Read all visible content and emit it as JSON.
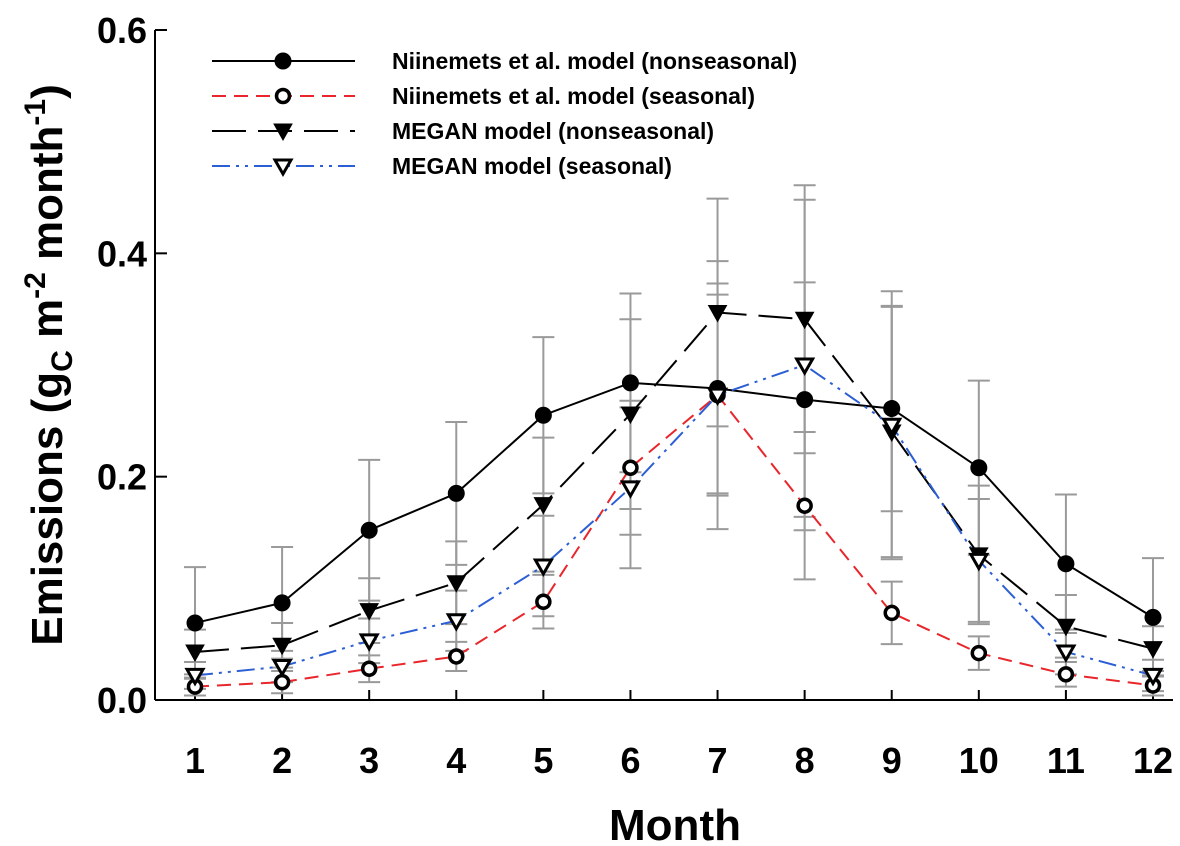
{
  "chart_data": {
    "type": "line",
    "title": "",
    "xlabel": "Month",
    "ylabel": {
      "main": "Emissions (g",
      "sub": "C",
      "mid": " m",
      "sup1": "-2",
      "mid2": " month",
      "sup2": "-1",
      "end": ")"
    },
    "ylim": [
      0,
      0.6
    ],
    "yticks": [
      "0.0",
      "0.2",
      "0.4",
      "0.6"
    ],
    "ytick_values": [
      0,
      0.2,
      0.4,
      0.6
    ],
    "x": [
      1,
      2,
      3,
      4,
      5,
      6,
      7,
      8,
      9,
      10,
      11,
      12
    ],
    "xticks": [
      "1",
      "2",
      "3",
      "4",
      "5",
      "6",
      "7",
      "8",
      "9",
      "10",
      "11",
      "12"
    ],
    "grid": false,
    "legend_position": "top-left",
    "series": [
      {
        "name": "Niinemets et al. model (nonseasonal)",
        "color": "#000000",
        "dash": "solid",
        "marker": "filled-circle",
        "values": [
          0.069,
          0.087,
          0.152,
          0.185,
          0.255,
          0.284,
          0.279,
          0.269,
          0.261,
          0.208,
          0.122,
          0.074
        ],
        "error": [
          0.05,
          0.05,
          0.063,
          0.064,
          0.07,
          0.08,
          0.094,
          0.105,
          0.092,
          0.078,
          0.062,
          0.053
        ]
      },
      {
        "name": "Niinemets et al. model (seasonal)",
        "color": "#e8262b",
        "dash": "dashed",
        "marker": "open-circle",
        "values": [
          0.012,
          0.016,
          0.028,
          0.039,
          0.088,
          0.208,
          0.273,
          0.174,
          0.078,
          0.042,
          0.023,
          0.013
        ],
        "error": [
          0.008,
          0.01,
          0.012,
          0.013,
          0.024,
          0.06,
          0.09,
          0.066,
          0.028,
          0.015,
          0.011,
          0.009
        ]
      },
      {
        "name": "MEGAN model (nonseasonal)",
        "color": "#000000",
        "dash": "long-dash",
        "marker": "filled-triangle-down",
        "values": [
          0.043,
          0.049,
          0.08,
          0.105,
          0.175,
          0.256,
          0.347,
          0.341,
          0.24,
          0.13,
          0.066,
          0.046
        ],
        "error": [
          0.02,
          0.02,
          0.029,
          0.037,
          0.06,
          0.085,
          0.102,
          0.12,
          0.112,
          0.062,
          0.028,
          0.02
        ]
      },
      {
        "name": "MEGAN model (seasonal)",
        "color": "#2c5fd4",
        "dash": "dash-dot-dot",
        "marker": "open-triangle-down",
        "values": [
          0.022,
          0.03,
          0.053,
          0.071,
          0.12,
          0.19,
          0.273,
          0.3,
          0.246,
          0.125,
          0.043,
          0.022
        ],
        "error": [
          0.012,
          0.014,
          0.02,
          0.027,
          0.045,
          0.072,
          0.12,
          0.148,
          0.12,
          0.055,
          0.02,
          0.014
        ]
      }
    ]
  }
}
